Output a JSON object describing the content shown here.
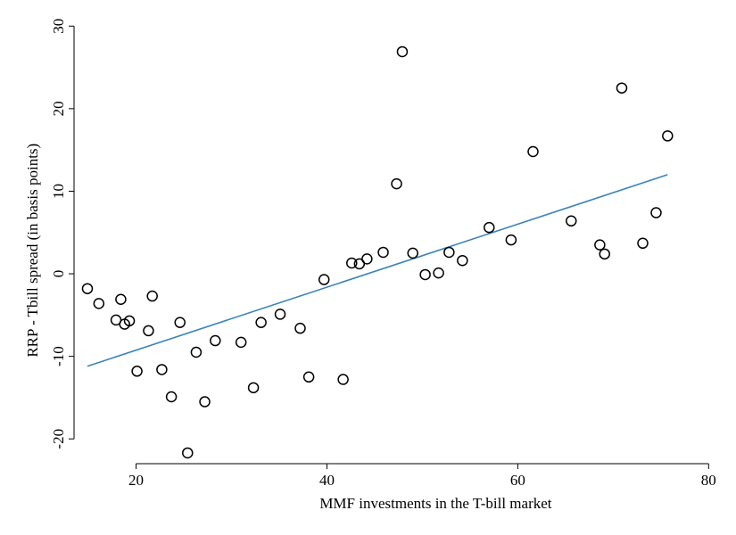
{
  "chart_data": {
    "type": "scatter",
    "title": "",
    "xlabel": "MMF investments in the T-bill market",
    "ylabel": "RRP - Tbill spread (in basis points)",
    "xlim": [
      13.5,
      81
    ],
    "ylim": [
      -23,
      31
    ],
    "x_ticks": [
      20,
      40,
      60,
      80
    ],
    "y_ticks": [
      -20,
      -10,
      0,
      10,
      20,
      30
    ],
    "grid": false,
    "legend": "none",
    "fit_color": "#3b84b8",
    "points": [
      {
        "x": 14.9,
        "y": -1.8
      },
      {
        "x": 16.1,
        "y": -3.6
      },
      {
        "x": 17.9,
        "y": -5.6
      },
      {
        "x": 18.4,
        "y": -3.1
      },
      {
        "x": 18.8,
        "y": -6.1
      },
      {
        "x": 19.3,
        "y": -5.7
      },
      {
        "x": 20.1,
        "y": -11.8
      },
      {
        "x": 21.3,
        "y": -6.9
      },
      {
        "x": 21.7,
        "y": -2.7
      },
      {
        "x": 22.7,
        "y": -11.6
      },
      {
        "x": 23.7,
        "y": -14.9
      },
      {
        "x": 24.6,
        "y": -5.9
      },
      {
        "x": 25.4,
        "y": -21.7
      },
      {
        "x": 26.3,
        "y": -9.5
      },
      {
        "x": 27.2,
        "y": -15.5
      },
      {
        "x": 28.3,
        "y": -8.1
      },
      {
        "x": 31.0,
        "y": -8.3
      },
      {
        "x": 32.3,
        "y": -13.8
      },
      {
        "x": 33.1,
        "y": -5.9
      },
      {
        "x": 35.1,
        "y": -4.9
      },
      {
        "x": 37.2,
        "y": -6.6
      },
      {
        "x": 38.1,
        "y": -12.5
      },
      {
        "x": 39.7,
        "y": -0.7
      },
      {
        "x": 41.7,
        "y": -12.8
      },
      {
        "x": 42.6,
        "y": 1.3
      },
      {
        "x": 43.4,
        "y": 1.2
      },
      {
        "x": 44.2,
        "y": 1.8
      },
      {
        "x": 45.9,
        "y": 2.6
      },
      {
        "x": 47.3,
        "y": 10.9
      },
      {
        "x": 47.9,
        "y": 26.9
      },
      {
        "x": 49.0,
        "y": 2.5
      },
      {
        "x": 50.3,
        "y": -0.1
      },
      {
        "x": 51.7,
        "y": 0.1
      },
      {
        "x": 52.8,
        "y": 2.6
      },
      {
        "x": 54.2,
        "y": 1.6
      },
      {
        "x": 57.0,
        "y": 5.6
      },
      {
        "x": 59.3,
        "y": 4.1
      },
      {
        "x": 61.6,
        "y": 14.8
      },
      {
        "x": 65.6,
        "y": 6.4
      },
      {
        "x": 68.6,
        "y": 3.5
      },
      {
        "x": 69.1,
        "y": 2.4
      },
      {
        "x": 70.9,
        "y": 22.5
      },
      {
        "x": 73.1,
        "y": 3.7
      },
      {
        "x": 74.5,
        "y": 7.4
      },
      {
        "x": 75.7,
        "y": 16.7
      }
    ],
    "fit_line": {
      "x": [
        14.9,
        75.7
      ],
      "y": [
        -11.2,
        12.0
      ]
    }
  }
}
